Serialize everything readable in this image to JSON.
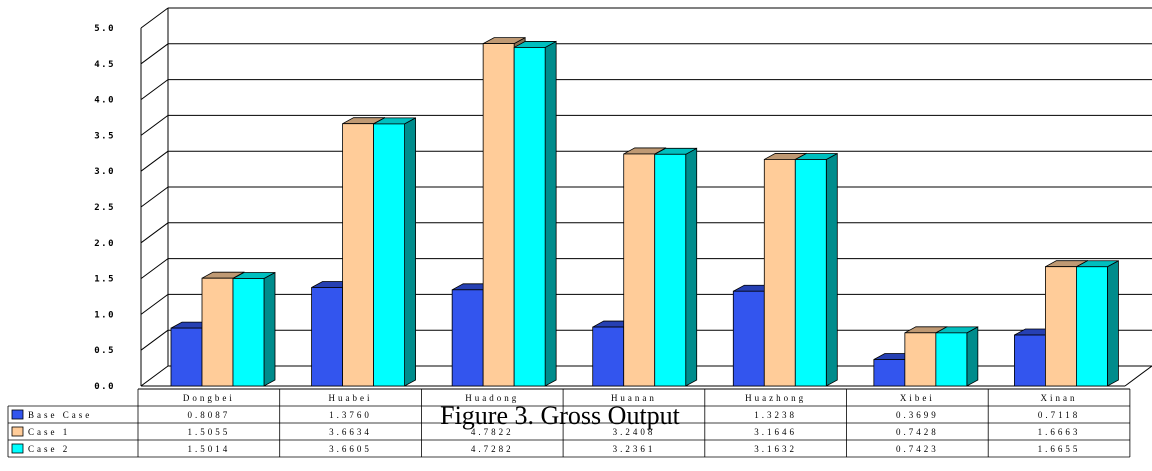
{
  "chart_data": {
    "type": "bar",
    "title": "Figure 3. Gross Output",
    "categories": [
      "Dongbei",
      "Huabei",
      "Huadong",
      "Huanan",
      "Huazhong",
      "Xibei",
      "Xinan"
    ],
    "series": [
      {
        "name": "Base Case",
        "color": "#3355ee",
        "values": [
          0.8087,
          1.376,
          1.3433,
          0.8232,
          1.3238,
          0.3699,
          0.7118
        ]
      },
      {
        "name": "Case 1",
        "color": "#ffcc99",
        "values": [
          1.5055,
          3.6634,
          4.7822,
          3.2408,
          3.1646,
          0.7428,
          1.6663
        ]
      },
      {
        "name": "Case 2",
        "color": "#00ffff",
        "values": [
          1.5014,
          3.6605,
          4.7282,
          3.2361,
          3.1632,
          0.7423,
          1.6655
        ]
      }
    ],
    "table_values": [
      [
        "0.8087",
        "1.3760",
        "",
        "",
        "1.3238",
        "0.3699",
        "0.7118"
      ],
      [
        "1.5055",
        "3.6634",
        "4.7822",
        "3.2408",
        "3.1646",
        "0.7428",
        "1.6663"
      ],
      [
        "1.5014",
        "3.6605",
        "4.7282",
        "3.2361",
        "3.1632",
        "0.7423",
        "1.6655"
      ]
    ],
    "yticks": [
      "0.0",
      "0.5",
      "1.0",
      "1.5",
      "2.0",
      "2.5",
      "3.0",
      "3.5",
      "4.0",
      "4.5",
      "5.0"
    ],
    "ylim": [
      0,
      5
    ],
    "grid": true,
    "legend": "table-left",
    "style": "3d-bar"
  }
}
